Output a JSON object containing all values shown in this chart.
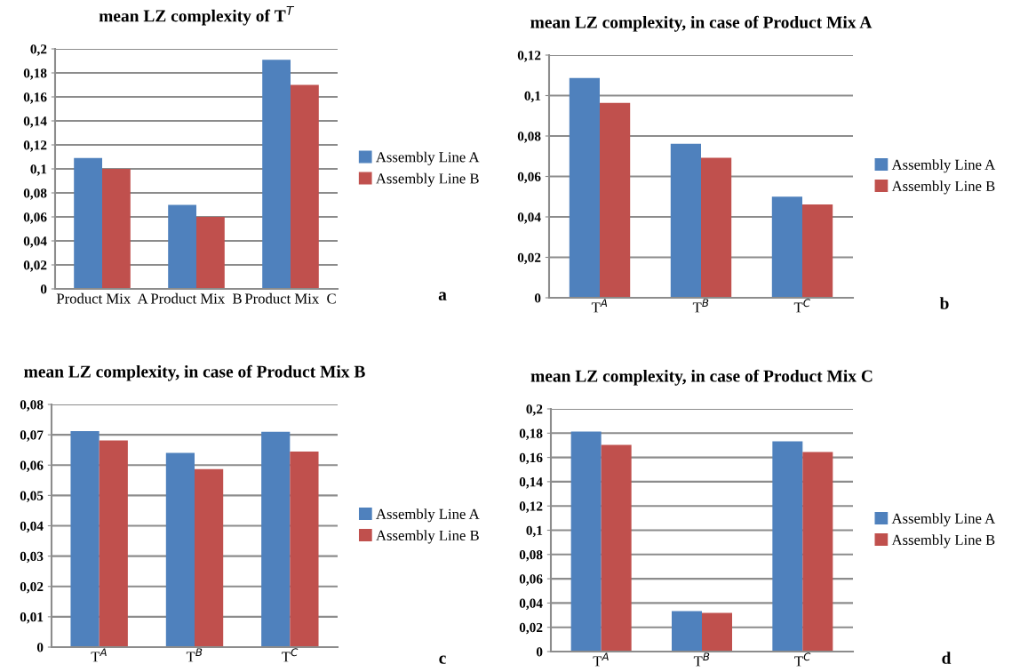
{
  "chart_data": [
    {
      "type": "bar",
      "title": "mean LZ complexity of T$^{T}$",
      "categories": [
        "Product Mix  A",
        "Product Mix  B",
        "Product Mix  C"
      ],
      "series": [
        {
          "name": "Assembly Line A",
          "color": "#4f81bd",
          "values": [
            0.109,
            0.07,
            0.191
          ]
        },
        {
          "name": "Assembly Line B",
          "color": "#c0504d",
          "values": [
            0.1,
            0.06,
            0.17
          ]
        }
      ],
      "ylim": [
        0,
        0.2
      ],
      "yticks": [
        {
          "value": 0,
          "label": "0"
        },
        {
          "value": 0.02,
          "label": "0,02"
        },
        {
          "value": 0.04,
          "label": "0,04"
        },
        {
          "value": 0.06,
          "label": "0,06"
        },
        {
          "value": 0.08,
          "label": "0,08"
        },
        {
          "value": 0.1,
          "label": "0,1"
        },
        {
          "value": 0.12,
          "label": "0,12"
        },
        {
          "value": 0.14,
          "label": "0,14"
        },
        {
          "value": 0.16,
          "label": "0,16"
        },
        {
          "value": 0.18,
          "label": "0,18"
        },
        {
          "value": 0.2,
          "label": "0,2"
        }
      ],
      "grid": "y",
      "legend": "right",
      "annotations": [
        "a"
      ]
    },
    {
      "type": "bar",
      "title": "mean LZ complexity, in case of Product Mix A",
      "categories": [
        "T$^{A}$",
        "T$^{B}$",
        "T$^{C}$"
      ],
      "series": [
        {
          "name": "Assembly Line A",
          "color": "#4f81bd",
          "values": [
            0.1087,
            0.0762,
            0.05
          ]
        },
        {
          "name": "Assembly Line B",
          "color": "#c0504d",
          "values": [
            0.0964,
            0.0692,
            0.0461
          ]
        }
      ],
      "ylim": [
        0,
        0.12
      ],
      "yticks": [
        {
          "value": 0,
          "label": "0"
        },
        {
          "value": 0.02,
          "label": "0,02"
        },
        {
          "value": 0.04,
          "label": "0,04"
        },
        {
          "value": 0.06,
          "label": "0,06"
        },
        {
          "value": 0.08,
          "label": "0,08"
        },
        {
          "value": 0.1,
          "label": "0,1"
        },
        {
          "value": 0.12,
          "label": "0,12"
        }
      ],
      "grid": "y",
      "legend": "right",
      "annotations": [
        "b"
      ]
    },
    {
      "type": "bar",
      "title": "mean LZ complexity, in case of Product Mix B",
      "categories": [
        "T$^{A}$",
        "T$^{B}$",
        "T$^{C}$"
      ],
      "series": [
        {
          "name": "Assembly Line A",
          "color": "#4f81bd",
          "values": [
            0.0712,
            0.064,
            0.071
          ]
        },
        {
          "name": "Assembly Line B",
          "color": "#c0504d",
          "values": [
            0.0681,
            0.0587,
            0.0645
          ]
        }
      ],
      "ylim": [
        0,
        0.08
      ],
      "yticks": [
        {
          "value": 0,
          "label": "0"
        },
        {
          "value": 0.01,
          "label": "0,01"
        },
        {
          "value": 0.02,
          "label": "0,02"
        },
        {
          "value": 0.03,
          "label": "0,03"
        },
        {
          "value": 0.04,
          "label": "0,04"
        },
        {
          "value": 0.05,
          "label": "0,05"
        },
        {
          "value": 0.06,
          "label": "0,06"
        },
        {
          "value": 0.07,
          "label": "0,07"
        },
        {
          "value": 0.08,
          "label": "0,08"
        }
      ],
      "grid": "y",
      "legend": "right",
      "annotations": [
        "c"
      ]
    },
    {
      "type": "bar",
      "title": "mean LZ complexity, in case of Product Mix C",
      "categories": [
        "T$^{A}$",
        "T$^{B}$",
        "T$^{C}$"
      ],
      "series": [
        {
          "name": "Assembly Line A",
          "color": "#4f81bd",
          "values": [
            0.1814,
            0.0333,
            0.1733
          ]
        },
        {
          "name": "Assembly Line B",
          "color": "#c0504d",
          "values": [
            0.1704,
            0.0318,
            0.1645
          ]
        }
      ],
      "ylim": [
        0,
        0.2
      ],
      "yticks": [
        {
          "value": 0,
          "label": "0"
        },
        {
          "value": 0.02,
          "label": "0,02"
        },
        {
          "value": 0.04,
          "label": "0,04"
        },
        {
          "value": 0.06,
          "label": "0,06"
        },
        {
          "value": 0.08,
          "label": "0,08"
        },
        {
          "value": 0.1,
          "label": "0,1"
        },
        {
          "value": 0.12,
          "label": "0,12"
        },
        {
          "value": 0.14,
          "label": "0,14"
        },
        {
          "value": 0.16,
          "label": "0,16"
        },
        {
          "value": 0.18,
          "label": "0,18"
        },
        {
          "value": 0.2,
          "label": "0,2"
        }
      ],
      "grid": "y",
      "legend": "right",
      "annotations": [
        "d"
      ]
    }
  ]
}
